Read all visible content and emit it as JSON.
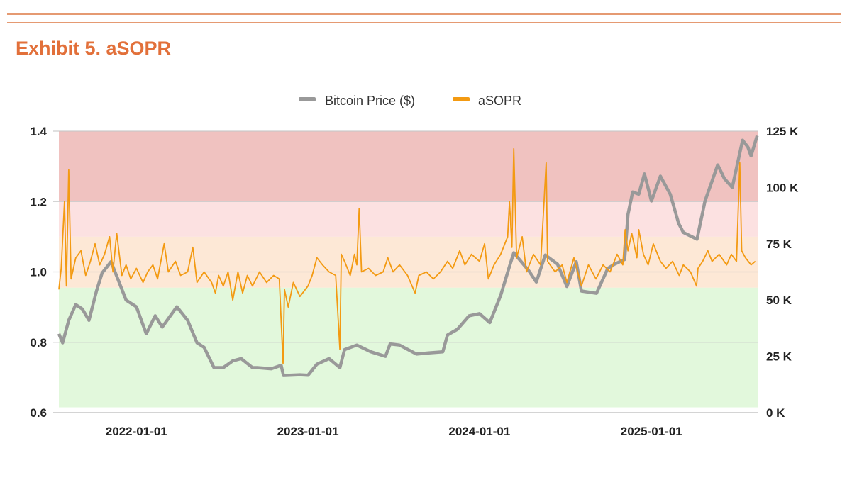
{
  "title": "Exhibit 5. aSOPR",
  "chart_data": {
    "type": "line",
    "title": "",
    "legend": [
      "Bitcoin Price ($)",
      "aSOPR"
    ],
    "legend_position": "top",
    "x_range": [
      "2021-07-20",
      "2025-08-15"
    ],
    "x_ticks": [
      "2022-01-01",
      "2023-01-01",
      "2024-01-01",
      "2025-01-01"
    ],
    "y_left": {
      "range": [
        0.6,
        1.4
      ],
      "ticks": [
        "0.6",
        "0.8",
        "1.0",
        "1.2",
        "1.4"
      ]
    },
    "y_right": {
      "range": [
        0,
        125000
      ],
      "ticks": [
        "0 K",
        "25 K",
        "50 K",
        "75 K",
        "100 K",
        "125 K"
      ]
    },
    "grid": true,
    "bands": [
      {
        "from": 1.2,
        "to": 1.4,
        "color": "#F0C2C0"
      },
      {
        "from": 1.1,
        "to": 1.2,
        "color": "#FCE1E1"
      },
      {
        "from": 0.955,
        "to": 1.1,
        "color": "#FDE8D6"
      },
      {
        "from": 0.615,
        "to": 0.955,
        "color": "#E2F8DC"
      }
    ],
    "colors": {
      "price": "#999999",
      "asopr": "#F39A12"
    },
    "series": [
      {
        "name": "Bitcoin Price ($)",
        "axis": "right",
        "points": [
          [
            "2021-07-20",
            35000
          ],
          [
            "2021-07-28",
            31000
          ],
          [
            "2021-08-10",
            41000
          ],
          [
            "2021-08-25",
            48000
          ],
          [
            "2021-09-08",
            46000
          ],
          [
            "2021-09-22",
            41000
          ],
          [
            "2021-10-08",
            54000
          ],
          [
            "2021-10-20",
            62000
          ],
          [
            "2021-11-08",
            67000
          ],
          [
            "2021-11-25",
            58000
          ],
          [
            "2021-12-10",
            50000
          ],
          [
            "2022-01-01",
            47000
          ],
          [
            "2022-01-22",
            35000
          ],
          [
            "2022-02-10",
            43000
          ],
          [
            "2022-02-25",
            38000
          ],
          [
            "2022-03-28",
            47000
          ],
          [
            "2022-04-20",
            41000
          ],
          [
            "2022-05-10",
            31000
          ],
          [
            "2022-05-25",
            29000
          ],
          [
            "2022-06-15",
            20000
          ],
          [
            "2022-07-05",
            20000
          ],
          [
            "2022-07-25",
            23000
          ],
          [
            "2022-08-12",
            24000
          ],
          [
            "2022-09-05",
            20000
          ],
          [
            "2022-09-15",
            20000
          ],
          [
            "2022-10-15",
            19500
          ],
          [
            "2022-11-05",
            21000
          ],
          [
            "2022-11-10",
            16500
          ],
          [
            "2022-12-15",
            16800
          ],
          [
            "2023-01-01",
            16600
          ],
          [
            "2023-01-20",
            21500
          ],
          [
            "2023-02-15",
            24000
          ],
          [
            "2023-03-10",
            20000
          ],
          [
            "2023-03-20",
            28000
          ],
          [
            "2023-04-15",
            30000
          ],
          [
            "2023-05-15",
            27000
          ],
          [
            "2023-06-15",
            25000
          ],
          [
            "2023-06-25",
            30500
          ],
          [
            "2023-07-15",
            30000
          ],
          [
            "2023-08-20",
            26000
          ],
          [
            "2023-09-15",
            26500
          ],
          [
            "2023-10-15",
            27000
          ],
          [
            "2023-10-25",
            34500
          ],
          [
            "2023-11-15",
            37000
          ],
          [
            "2023-12-10",
            43000
          ],
          [
            "2024-01-01",
            44000
          ],
          [
            "2024-01-23",
            40000
          ],
          [
            "2024-02-15",
            52000
          ],
          [
            "2024-03-05",
            65000
          ],
          [
            "2024-03-14",
            71000
          ],
          [
            "2024-04-15",
            63000
          ],
          [
            "2024-05-01",
            58000
          ],
          [
            "2024-05-20",
            70000
          ],
          [
            "2024-06-15",
            66000
          ],
          [
            "2024-07-05",
            56000
          ],
          [
            "2024-07-25",
            67000
          ],
          [
            "2024-08-05",
            54000
          ],
          [
            "2024-09-06",
            53000
          ],
          [
            "2024-09-30",
            64000
          ],
          [
            "2024-10-15",
            66000
          ],
          [
            "2024-11-05",
            68000
          ],
          [
            "2024-11-12",
            88000
          ],
          [
            "2024-11-22",
            98000
          ],
          [
            "2024-12-05",
            97000
          ],
          [
            "2024-12-17",
            106000
          ],
          [
            "2025-01-01",
            94000
          ],
          [
            "2025-01-20",
            105000
          ],
          [
            "2025-02-10",
            97000
          ],
          [
            "2025-02-28",
            84000
          ],
          [
            "2025-03-10",
            80000
          ],
          [
            "2025-04-08",
            77000
          ],
          [
            "2025-04-25",
            94000
          ],
          [
            "2025-05-22",
            110000
          ],
          [
            "2025-06-05",
            104000
          ],
          [
            "2025-06-22",
            100000
          ],
          [
            "2025-07-14",
            121000
          ],
          [
            "2025-07-25",
            118000
          ],
          [
            "2025-08-01",
            114000
          ],
          [
            "2025-08-14",
            123000
          ]
        ]
      },
      {
        "name": "aSOPR",
        "axis": "left",
        "points": [
          [
            "2021-07-20",
            0.95
          ],
          [
            "2021-07-25",
            1.01
          ],
          [
            "2021-08-01",
            1.2
          ],
          [
            "2021-08-05",
            0.96
          ],
          [
            "2021-08-10",
            1.29
          ],
          [
            "2021-08-15",
            0.98
          ],
          [
            "2021-08-25",
            1.04
          ],
          [
            "2021-09-05",
            1.06
          ],
          [
            "2021-09-15",
            0.99
          ],
          [
            "2021-09-25",
            1.03
          ],
          [
            "2021-10-05",
            1.08
          ],
          [
            "2021-10-15",
            1.02
          ],
          [
            "2021-10-25",
            1.05
          ],
          [
            "2021-11-05",
            1.1
          ],
          [
            "2021-11-12",
            1.0
          ],
          [
            "2021-11-20",
            1.11
          ],
          [
            "2021-12-01",
            0.99
          ],
          [
            "2021-12-10",
            1.02
          ],
          [
            "2021-12-20",
            0.98
          ],
          [
            "2022-01-01",
            1.01
          ],
          [
            "2022-01-15",
            0.97
          ],
          [
            "2022-01-25",
            1.0
          ],
          [
            "2022-02-05",
            1.02
          ],
          [
            "2022-02-15",
            0.98
          ],
          [
            "2022-03-01",
            1.08
          ],
          [
            "2022-03-10",
            1.0
          ],
          [
            "2022-03-25",
            1.03
          ],
          [
            "2022-04-05",
            0.99
          ],
          [
            "2022-04-20",
            1.0
          ],
          [
            "2022-05-01",
            1.07
          ],
          [
            "2022-05-10",
            0.97
          ],
          [
            "2022-05-25",
            1.0
          ],
          [
            "2022-06-10",
            0.97
          ],
          [
            "2022-06-18",
            0.94
          ],
          [
            "2022-06-25",
            0.99
          ],
          [
            "2022-07-05",
            0.96
          ],
          [
            "2022-07-15",
            1.0
          ],
          [
            "2022-07-25",
            0.92
          ],
          [
            "2022-08-05",
            1.0
          ],
          [
            "2022-08-15",
            0.94
          ],
          [
            "2022-08-25",
            0.99
          ],
          [
            "2022-09-05",
            0.96
          ],
          [
            "2022-09-20",
            1.0
          ],
          [
            "2022-10-05",
            0.97
          ],
          [
            "2022-10-20",
            0.99
          ],
          [
            "2022-11-01",
            0.98
          ],
          [
            "2022-11-09",
            0.74
          ],
          [
            "2022-11-12",
            0.95
          ],
          [
            "2022-11-20",
            0.9
          ],
          [
            "2022-12-01",
            0.97
          ],
          [
            "2022-12-15",
            0.93
          ],
          [
            "2023-01-01",
            0.96
          ],
          [
            "2023-01-10",
            0.99
          ],
          [
            "2023-01-20",
            1.04
          ],
          [
            "2023-02-01",
            1.02
          ],
          [
            "2023-02-15",
            1.0
          ],
          [
            "2023-03-01",
            0.99
          ],
          [
            "2023-03-10",
            0.78
          ],
          [
            "2023-03-13",
            1.05
          ],
          [
            "2023-03-20",
            1.03
          ],
          [
            "2023-04-01",
            0.99
          ],
          [
            "2023-04-10",
            1.05
          ],
          [
            "2023-04-15",
            1.02
          ],
          [
            "2023-04-20",
            1.18
          ],
          [
            "2023-04-25",
            1.0
          ],
          [
            "2023-05-10",
            1.01
          ],
          [
            "2023-05-25",
            0.99
          ],
          [
            "2023-06-10",
            1.0
          ],
          [
            "2023-06-20",
            1.04
          ],
          [
            "2023-07-01",
            1.0
          ],
          [
            "2023-07-15",
            1.02
          ],
          [
            "2023-08-01",
            0.99
          ],
          [
            "2023-08-17",
            0.94
          ],
          [
            "2023-08-25",
            0.99
          ],
          [
            "2023-09-10",
            1.0
          ],
          [
            "2023-09-25",
            0.98
          ],
          [
            "2023-10-10",
            1.0
          ],
          [
            "2023-10-25",
            1.03
          ],
          [
            "2023-11-05",
            1.01
          ],
          [
            "2023-11-20",
            1.06
          ],
          [
            "2023-12-01",
            1.02
          ],
          [
            "2023-12-15",
            1.05
          ],
          [
            "2024-01-01",
            1.03
          ],
          [
            "2024-01-12",
            1.08
          ],
          [
            "2024-01-20",
            0.98
          ],
          [
            "2024-02-01",
            1.02
          ],
          [
            "2024-02-15",
            1.05
          ],
          [
            "2024-03-01",
            1.1
          ],
          [
            "2024-03-05",
            1.2
          ],
          [
            "2024-03-10",
            1.07
          ],
          [
            "2024-03-14",
            1.35
          ],
          [
            "2024-03-20",
            1.04
          ],
          [
            "2024-04-01",
            1.1
          ],
          [
            "2024-04-10",
            1.0
          ],
          [
            "2024-04-25",
            1.05
          ],
          [
            "2024-05-10",
            1.02
          ],
          [
            "2024-05-22",
            1.31
          ],
          [
            "2024-05-25",
            1.03
          ],
          [
            "2024-06-10",
            1.0
          ],
          [
            "2024-06-25",
            1.02
          ],
          [
            "2024-07-05",
            0.97
          ],
          [
            "2024-07-20",
            1.04
          ],
          [
            "2024-08-05",
            0.96
          ],
          [
            "2024-08-20",
            1.02
          ],
          [
            "2024-09-05",
            0.98
          ],
          [
            "2024-09-20",
            1.02
          ],
          [
            "2024-10-05",
            1.0
          ],
          [
            "2024-10-20",
            1.05
          ],
          [
            "2024-11-01",
            1.02
          ],
          [
            "2024-11-06",
            1.12
          ],
          [
            "2024-11-12",
            1.06
          ],
          [
            "2024-11-20",
            1.11
          ],
          [
            "2024-12-01",
            1.04
          ],
          [
            "2024-12-05",
            1.12
          ],
          [
            "2024-12-15",
            1.05
          ],
          [
            "2024-12-25",
            1.02
          ],
          [
            "2025-01-05",
            1.08
          ],
          [
            "2025-01-20",
            1.03
          ],
          [
            "2025-02-01",
            1.01
          ],
          [
            "2025-02-15",
            1.03
          ],
          [
            "2025-03-01",
            0.99
          ],
          [
            "2025-03-10",
            1.02
          ],
          [
            "2025-03-25",
            1.0
          ],
          [
            "2025-04-07",
            0.96
          ],
          [
            "2025-04-10",
            1.01
          ],
          [
            "2025-04-20",
            1.03
          ],
          [
            "2025-05-01",
            1.06
          ],
          [
            "2025-05-10",
            1.03
          ],
          [
            "2025-05-25",
            1.05
          ],
          [
            "2025-06-10",
            1.02
          ],
          [
            "2025-06-20",
            1.05
          ],
          [
            "2025-07-01",
            1.03
          ],
          [
            "2025-07-08",
            1.31
          ],
          [
            "2025-07-12",
            1.06
          ],
          [
            "2025-07-20",
            1.04
          ],
          [
            "2025-08-01",
            1.02
          ],
          [
            "2025-08-10",
            1.03
          ]
        ]
      }
    ]
  }
}
